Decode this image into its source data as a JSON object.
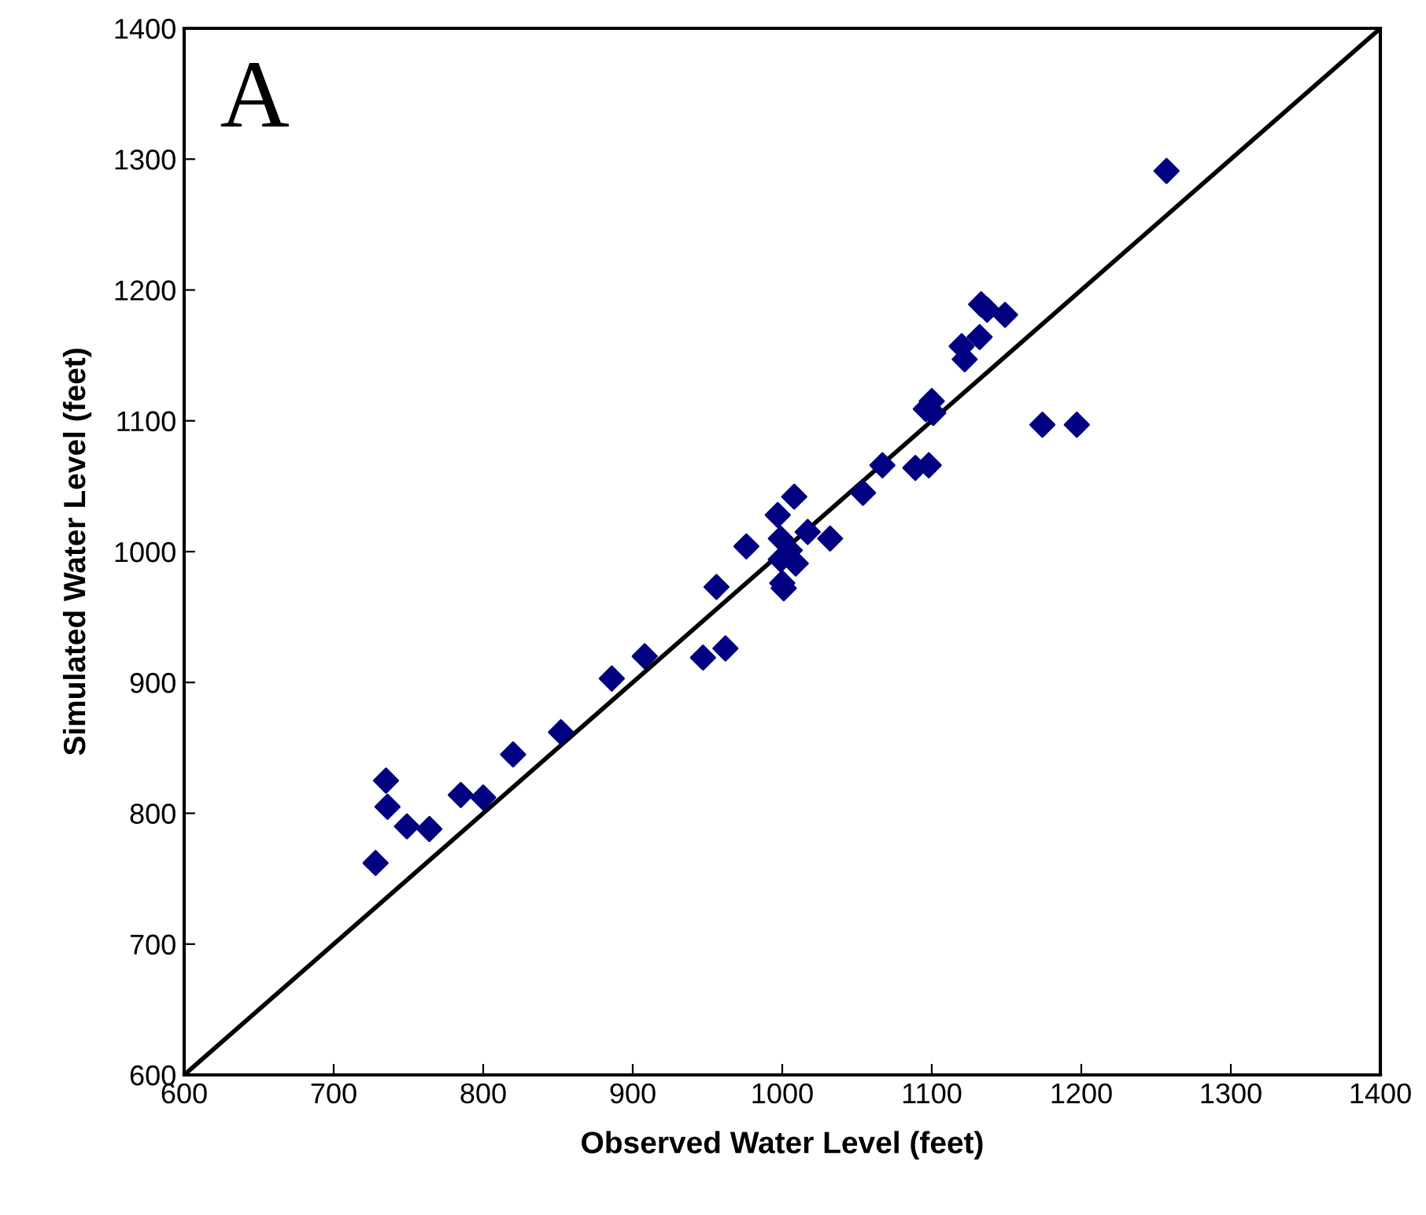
{
  "chart_data": {
    "type": "scatter",
    "xlabel": "Observed Water Level (feet)",
    "ylabel": "Simulated Water Level (feet)",
    "annotations": [
      "A"
    ],
    "xlim": [
      600,
      1400
    ],
    "ylim": [
      600,
      1400
    ],
    "xticks": [
      600,
      700,
      800,
      900,
      1000,
      1100,
      1200,
      1300,
      1400
    ],
    "yticks": [
      600,
      700,
      800,
      900,
      1000,
      1100,
      1200,
      1300,
      1400
    ],
    "grid": false,
    "legend": false,
    "series": [
      {
        "marker": "diamond",
        "color": "#000080",
        "x": [
          728,
          735,
          736,
          749,
          764,
          785,
          800,
          820,
          852,
          886,
          908,
          947,
          962,
          956,
          976,
          997,
          1008,
          999,
          999,
          1000,
          1001,
          1005,
          1009,
          1017,
          1032,
          1054,
          1067,
          1089,
          1098,
          1096,
          1100,
          1101,
          1120,
          1122,
          1132,
          1133,
          1137,
          1149,
          1174,
          1197,
          1257
        ],
        "values": [
          762,
          825,
          805,
          790,
          788,
          814,
          812,
          845,
          862,
          903,
          920,
          919,
          926,
          973,
          1004,
          1028,
          1042,
          1010,
          994,
          976,
          972,
          1001,
          991,
          1015,
          1010,
          1045,
          1066,
          1064,
          1066,
          1109,
          1115,
          1106,
          1157,
          1147,
          1164,
          1189,
          1185,
          1181,
          1097,
          1097,
          1291
        ]
      },
      {
        "type": "line",
        "color": "#000000",
        "line_style": "solid",
        "x": [
          600,
          1400
        ],
        "values": [
          600,
          1400
        ]
      }
    ]
  }
}
